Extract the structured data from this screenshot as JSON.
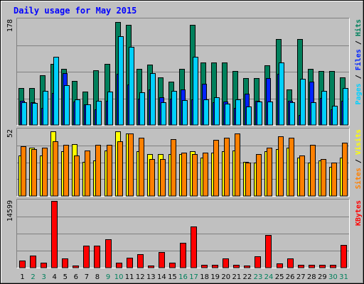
{
  "chart_data": {
    "type": "bar",
    "title": "Daily usage for May 2015",
    "categories": [
      "1",
      "2",
      "3",
      "4",
      "5",
      "6",
      "7",
      "8",
      "9",
      "10",
      "11",
      "12",
      "13",
      "14",
      "15",
      "16",
      "17",
      "18",
      "19",
      "20",
      "21",
      "22",
      "23",
      "24",
      "25",
      "26",
      "27",
      "28",
      "29",
      "30",
      "31"
    ],
    "weekend_days": [
      2,
      3,
      9,
      10,
      16,
      17,
      23,
      24,
      30,
      31
    ],
    "panels": [
      {
        "id": "hits-files-pages",
        "ymax": 178,
        "ymax_label": "178",
        "side_labels": [
          "Pages",
          "Files",
          "Hits"
        ],
        "series": [
          {
            "name": "Hits",
            "color": "#00805c",
            "values": [
              62,
              62,
              84,
              104,
              95,
              75,
              57,
              93,
              104,
              174,
              170,
              95,
              102,
              80,
              73,
              95,
              170,
              106,
              106,
              106,
              91,
              79,
              79,
              101,
              145,
              60,
              145,
              95,
              91,
              91,
              81
            ]
          },
          {
            "name": "Files",
            "color": "#0024ff",
            "values": [
              41,
              39,
              29,
              54,
              88,
              40,
              35,
              27,
              41,
              87,
              68,
              44,
              60,
              47,
              45,
              60,
              43,
              70,
              39,
              40,
              29,
              53,
              41,
              79,
              87,
              41,
              17,
              73,
              46,
              27,
              41
            ]
          },
          {
            "name": "Pages",
            "color": "#00d0ff",
            "values": [
              38,
              37,
              58,
              115,
              67,
              43,
              35,
              41,
              57,
              150,
              132,
              55,
              88,
              39,
              58,
              42,
              115,
              43,
              47,
              36,
              43,
              31,
              40,
              40,
              106,
              39,
              78,
              38,
              58,
              33,
              63
            ]
          }
        ]
      },
      {
        "id": "visits-sites",
        "ymax": 52,
        "ymax_label": "52",
        "side_labels": [
          "Sites",
          "Visits"
        ],
        "series": [
          {
            "name": "Visits",
            "color": "#ffff00",
            "values": [
              32,
              38,
              32,
              51,
              35,
              41,
              27,
              28,
              36,
              51,
              49,
              35,
              33,
              33,
              33,
              33,
              35,
              30,
              34,
              35,
              36,
              27,
              26,
              35,
              37,
              38,
              30,
              26,
              28,
              23,
              30
            ]
          },
          {
            "name": "Sites",
            "color": "#ff8000",
            "values": [
              39,
              37,
              38,
              43,
              40,
              32,
              36,
              40,
              40,
              43,
              49,
              46,
              29,
              29,
              45,
              34,
              33,
              34,
              44,
              46,
              49,
              26,
              33,
              38,
              47,
              46,
              32,
              40,
              29,
              26,
              42
            ]
          }
        ]
      },
      {
        "id": "kbytes",
        "ymax": 14599,
        "ymax_label": "14599",
        "side_labels": [
          "KBytes"
        ],
        "series": [
          {
            "name": "KBytes",
            "color": "#ff0000",
            "values": [
              1610,
              2670,
              1070,
              14599,
              2040,
              500,
              4800,
              4800,
              6150,
              1160,
              2140,
              2980,
              500,
              3470,
              1070,
              5400,
              9000,
              610,
              610,
              2040,
              610,
              500,
              2540,
              7150,
              900,
              2040,
              610,
              690,
              610,
              690,
              5040
            ]
          }
        ]
      }
    ],
    "colors": {
      "background": "#c0c0c0",
      "title": "#0000ff",
      "weekday_label": "#000000",
      "weekend_label": "#00805c"
    }
  }
}
